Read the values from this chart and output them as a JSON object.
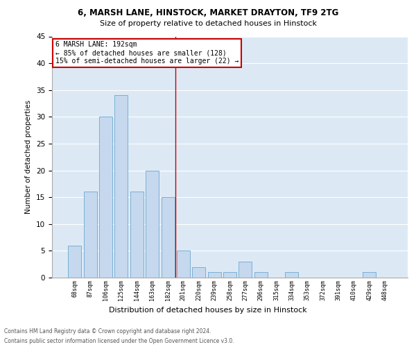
{
  "title1": "6, MARSH LANE, HINSTOCK, MARKET DRAYTON, TF9 2TG",
  "title2": "Size of property relative to detached houses in Hinstock",
  "xlabel": "Distribution of detached houses by size in Hinstock",
  "ylabel": "Number of detached properties",
  "bar_labels": [
    "68sqm",
    "87sqm",
    "106sqm",
    "125sqm",
    "144sqm",
    "163sqm",
    "182sqm",
    "201sqm",
    "220sqm",
    "239sqm",
    "258sqm",
    "277sqm",
    "296sqm",
    "315sqm",
    "334sqm",
    "353sqm",
    "372sqm",
    "391sqm",
    "410sqm",
    "429sqm",
    "448sqm"
  ],
  "bar_values": [
    6,
    16,
    30,
    34,
    16,
    20,
    15,
    5,
    2,
    1,
    1,
    3,
    1,
    0,
    1,
    0,
    0,
    0,
    0,
    1,
    0
  ],
  "bar_color": "#c5d8ee",
  "bar_edge_color": "#7aafd4",
  "vline_x": 6.5,
  "vline_color": "#cc0000",
  "annotation_title": "6 MARSH LANE: 192sqm",
  "annotation_line1": "← 85% of detached houses are smaller (128)",
  "annotation_line2": "15% of semi-detached houses are larger (22) →",
  "ylim": [
    0,
    45
  ],
  "yticks": [
    0,
    5,
    10,
    15,
    20,
    25,
    30,
    35,
    40,
    45
  ],
  "footer1": "Contains HM Land Registry data © Crown copyright and database right 2024.",
  "footer2": "Contains public sector information licensed under the Open Government Licence v3.0.",
  "plot_bg_color": "#dce9f5"
}
